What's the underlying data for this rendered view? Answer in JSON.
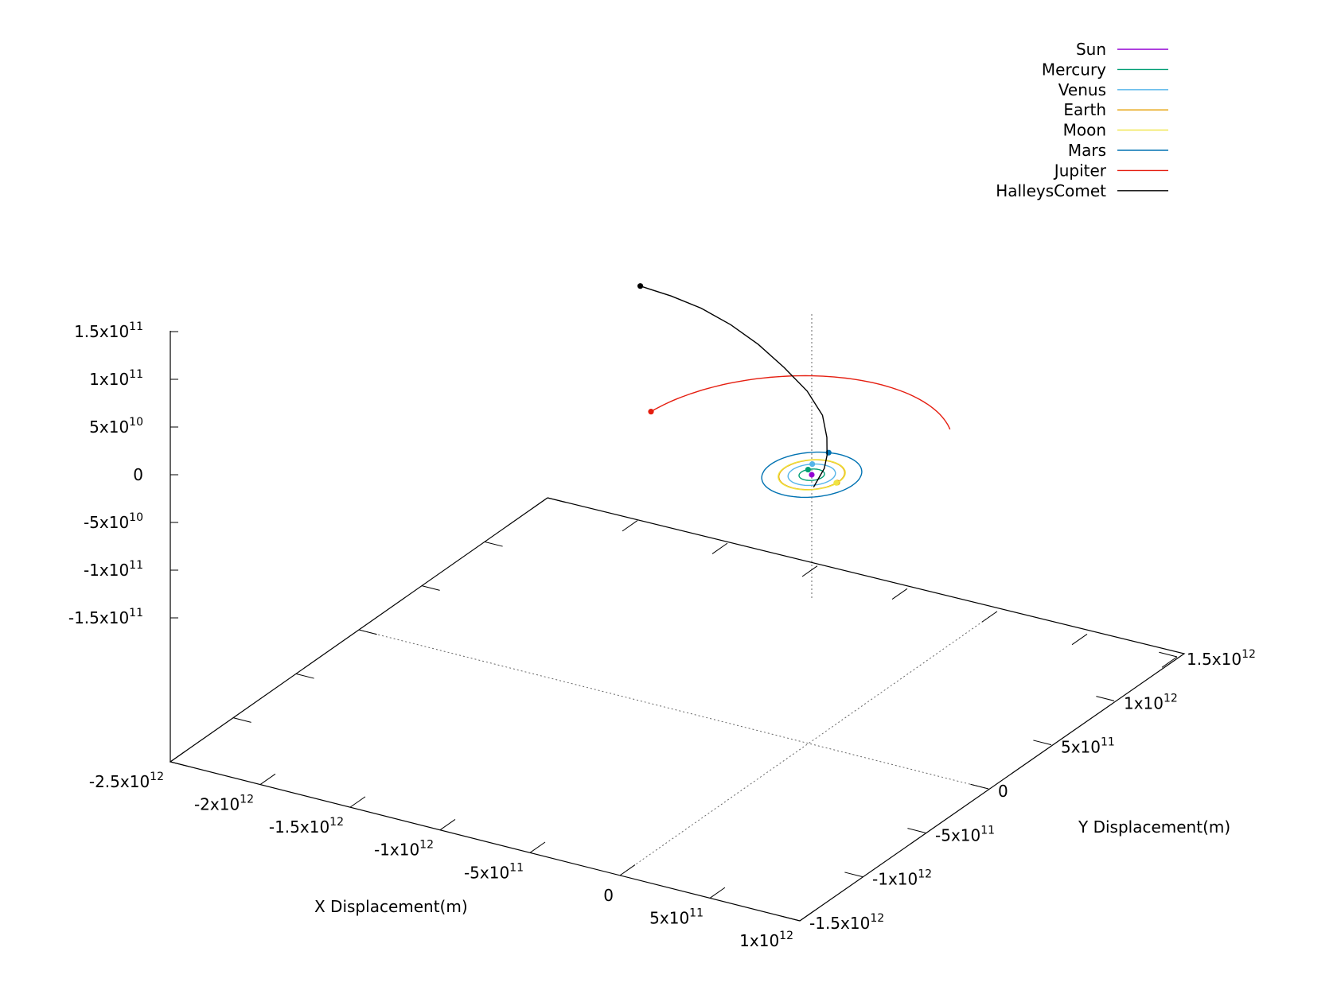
{
  "chart_data": {
    "type": "line",
    "projection": "3d",
    "xlabel": "X Displacement(m)",
    "ylabel": "Y Displacement(m)",
    "zlabel": "",
    "xlim": [
      -2500000000000.0,
      1000000000000.0
    ],
    "ylim": [
      -1500000000000.0,
      1500000000000.0
    ],
    "zlim": [
      -150000000000.0,
      150000000000.0
    ],
    "grid": false,
    "legend_position": "top-right",
    "x_ticks": [
      {
        "value": -2500000000000.0,
        "mant": "-2.5x10",
        "exp": "12"
      },
      {
        "value": -2000000000000.0,
        "mant": "-2x10",
        "exp": "12"
      },
      {
        "value": -1500000000000.0,
        "mant": "-1.5x10",
        "exp": "12"
      },
      {
        "value": -1000000000000.0,
        "mant": "-1x10",
        "exp": "12"
      },
      {
        "value": -500000000000.0,
        "mant": "-5x10",
        "exp": "11"
      },
      {
        "value": 0,
        "mant": "0",
        "exp": ""
      },
      {
        "value": 500000000000.0,
        "mant": "5x10",
        "exp": "11"
      },
      {
        "value": 1000000000000.0,
        "mant": "1x10",
        "exp": "12"
      }
    ],
    "y_ticks": [
      {
        "value": -1500000000000.0,
        "mant": "-1.5x10",
        "exp": "12"
      },
      {
        "value": -1000000000000.0,
        "mant": "-1x10",
        "exp": "12"
      },
      {
        "value": -500000000000.0,
        "mant": "-5x10",
        "exp": "11"
      },
      {
        "value": 0,
        "mant": "0",
        "exp": ""
      },
      {
        "value": 500000000000.0,
        "mant": "5x10",
        "exp": "11"
      },
      {
        "value": 1000000000000.0,
        "mant": "1x10",
        "exp": "12"
      },
      {
        "value": 1500000000000.0,
        "mant": "1.5x10",
        "exp": "12"
      }
    ],
    "z_ticks": [
      {
        "value": 150000000000.0,
        "mant": "1.5x10",
        "exp": "11"
      },
      {
        "value": 100000000000.0,
        "mant": "1x10",
        "exp": "11"
      },
      {
        "value": 50000000000.0,
        "mant": "5x10",
        "exp": "10"
      },
      {
        "value": 0,
        "mant": "0",
        "exp": ""
      },
      {
        "value": -50000000000.0,
        "mant": "-5x10",
        "exp": "10"
      },
      {
        "value": -100000000000.0,
        "mant": "-1x10",
        "exp": "11"
      },
      {
        "value": -150000000000.0,
        "mant": "-1.5x10",
        "exp": "11"
      }
    ],
    "series": [
      {
        "name": "Sun",
        "color": "#9400d3",
        "kind": "orbit",
        "radius": 0,
        "current": [
          0,
          0,
          0
        ]
      },
      {
        "name": "Mercury",
        "color": "#009e73",
        "kind": "orbit",
        "radius": 58000000000.0,
        "current": [
          -45000000000.0,
          35000000000.0,
          0
        ]
      },
      {
        "name": "Venus",
        "color": "#56b4e9",
        "kind": "orbit",
        "radius": 108000000000.0,
        "current": [
          -60000000000.0,
          90000000000.0,
          0
        ]
      },
      {
        "name": "Earth",
        "color": "#e69f00",
        "kind": "orbit",
        "radius": 150000000000.0,
        "current": [
          150000000000.0,
          -12000000000.0,
          0
        ]
      },
      {
        "name": "Moon",
        "color": "#f0e442",
        "kind": "orbit",
        "radius": 153000000000.0,
        "current": [
          148000000000.0,
          -16000000000.0,
          0
        ]
      },
      {
        "name": "Mars",
        "color": "#0072b2",
        "kind": "orbit",
        "radius": 228000000000.0,
        "current": [
          -60000000000.0,
          220000000000.0,
          0
        ]
      },
      {
        "name": "Jupiter",
        "color": "#e51e10",
        "kind": "arc",
        "radius": 778000000000.0,
        "current": [
          550000000000.0,
          545000000000.0,
          0
        ],
        "angle_start": 45,
        "angle_end": 175
      },
      {
        "name": "HalleysComet",
        "color": "#000000",
        "kind": "path",
        "x": [
          80000000000.0,
          70000000000.0,
          50000000000.0,
          0,
          -80000000000.0,
          -200000000000.0,
          -350000000000.0,
          -500000000000.0,
          -650000000000.0,
          -800000000000.0,
          -950000000000.0,
          -1050000000000.0,
          -1100000000000.0
        ],
        "y": [
          -100000000000.0,
          0,
          50000000000.0,
          120000000000.0,
          200000000000.0,
          250000000000.0,
          280000000000.0,
          290000000000.0,
          285000000000.0,
          265000000000.0,
          240000000000.0,
          220000000000.0,
          210000000000.0
        ],
        "z": [
          0,
          10000000000.0,
          18000000000.0,
          28000000000.0,
          40000000000.0,
          55000000000.0,
          70000000000.0,
          86000000000.0,
          100000000000.0,
          112000000000.0,
          120000000000.0,
          124000000000.0,
          126000000000.0
        ]
      }
    ]
  }
}
